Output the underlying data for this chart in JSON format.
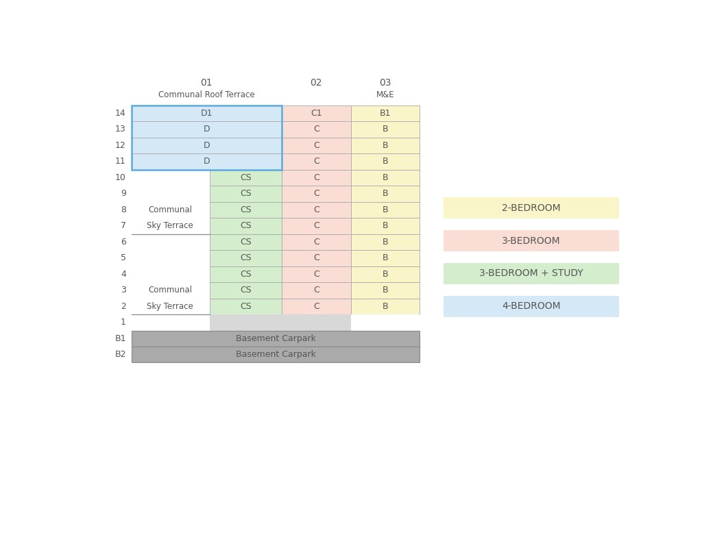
{
  "background_color": "#ffffff",
  "colors": {
    "yellow": "#faf5c8",
    "pink": "#faddd4",
    "green": "#d4edcc",
    "blue": "#d4e8f5",
    "gray": "#aaaaaa",
    "light_gray": "#d8d8d8",
    "white": "#ffffff",
    "text": "#555555",
    "blue_border": "#5aaadd"
  },
  "col_headers": [
    "01",
    "02",
    "03"
  ],
  "col_subheaders": [
    "Communal Roof Terrace",
    "",
    "M&E"
  ],
  "floors": [
    "14",
    "13",
    "12",
    "11",
    "10",
    "9",
    "8",
    "7",
    "6",
    "5",
    "4",
    "3",
    "2",
    "1",
    "B1",
    "B2"
  ],
  "floor_rows": {
    "14": {
      "type": "top4",
      "col0_text": "D1",
      "col0_color": "blue",
      "col1_text": "C1",
      "col1_color": "pink",
      "col2_text": "B1",
      "col2_color": "yellow",
      "left_label": ""
    },
    "13": {
      "type": "top4",
      "col0_text": "D",
      "col0_color": "blue",
      "col1_text": "C",
      "col1_color": "pink",
      "col2_text": "B",
      "col2_color": "yellow",
      "left_label": ""
    },
    "12": {
      "type": "top4",
      "col0_text": "D",
      "col0_color": "blue",
      "col1_text": "C",
      "col1_color": "pink",
      "col2_text": "B",
      "col2_color": "yellow",
      "left_label": ""
    },
    "11": {
      "type": "top4",
      "col0_text": "D",
      "col0_color": "blue",
      "col1_text": "C",
      "col1_color": "pink",
      "col2_text": "B",
      "col2_color": "yellow",
      "left_label": ""
    },
    "10": {
      "type": "split",
      "cs_text": "CS",
      "cs_color": "green",
      "c_text": "C",
      "c_color": "pink",
      "b_text": "B",
      "b_color": "yellow",
      "left_label": ""
    },
    "9": {
      "type": "split",
      "cs_text": "CS",
      "cs_color": "green",
      "c_text": "C",
      "c_color": "pink",
      "b_text": "B",
      "b_color": "yellow",
      "left_label": ""
    },
    "8": {
      "type": "split",
      "cs_text": "CS",
      "cs_color": "green",
      "c_text": "C",
      "c_color": "pink",
      "b_text": "B",
      "b_color": "yellow",
      "left_label": "Communal"
    },
    "7": {
      "type": "split",
      "cs_text": "CS",
      "cs_color": "green",
      "c_text": "C",
      "c_color": "pink",
      "b_text": "B",
      "b_color": "yellow",
      "left_label": "Sky Terrace",
      "line_below": true
    },
    "6": {
      "type": "split",
      "cs_text": "CS",
      "cs_color": "green",
      "c_text": "C",
      "c_color": "pink",
      "b_text": "B",
      "b_color": "yellow",
      "left_label": ""
    },
    "5": {
      "type": "split",
      "cs_text": "CS",
      "cs_color": "green",
      "c_text": "C",
      "c_color": "pink",
      "b_text": "B",
      "b_color": "yellow",
      "left_label": ""
    },
    "4": {
      "type": "split",
      "cs_text": "CS",
      "cs_color": "green",
      "c_text": "C",
      "c_color": "pink",
      "b_text": "B",
      "b_color": "yellow",
      "left_label": ""
    },
    "3": {
      "type": "split",
      "cs_text": "CS",
      "cs_color": "green",
      "c_text": "C",
      "c_color": "pink",
      "b_text": "B",
      "b_color": "yellow",
      "left_label": "Communal"
    },
    "2": {
      "type": "split",
      "cs_text": "CS",
      "cs_color": "green",
      "c_text": "C",
      "c_color": "pink",
      "b_text": "B",
      "b_color": "yellow",
      "left_label": "Sky Terrace",
      "line_below": true
    },
    "1": {
      "type": "floor1"
    },
    "B1": {
      "type": "basement",
      "text": "Basement Carpark"
    },
    "B2": {
      "type": "basement",
      "text": "Basement Carpark"
    }
  },
  "legend": [
    {
      "label": "2-BEDROOM",
      "color": "yellow"
    },
    {
      "label": "3-BEDROOM",
      "color": "pink"
    },
    {
      "label": "3-BEDROOM + STUDY",
      "color": "green"
    },
    {
      "label": "4-BEDROOM",
      "color": "blue"
    }
  ]
}
